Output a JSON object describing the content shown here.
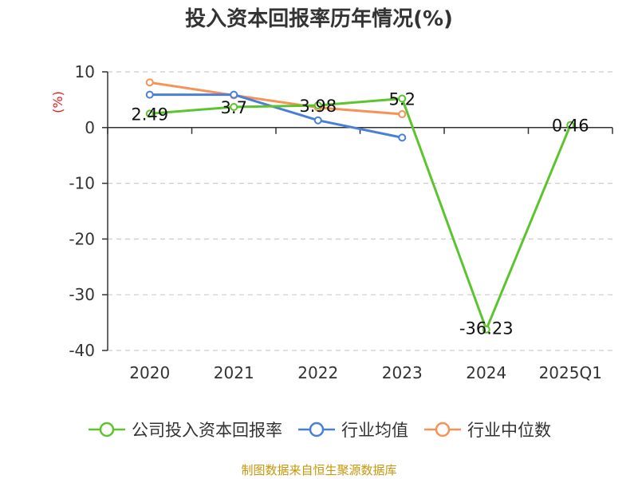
{
  "chart_data": {
    "type": "line",
    "title": "投入资本回报率历年情况(%)",
    "ylabel": "(%)",
    "categories": [
      "2020",
      "2021",
      "2022",
      "2023",
      "2024",
      "2025Q1"
    ],
    "ylim": [
      -40,
      10
    ],
    "yticks": [
      "10",
      "0",
      "-10",
      "-20",
      "-30",
      "-40"
    ],
    "grid": true,
    "legend_placement": "bottom",
    "series": [
      {
        "name": "公司投入资本回报率",
        "color": "#5cc42e",
        "values": [
          2.49,
          3.7,
          3.98,
          5.2,
          -36.23,
          0.46
        ],
        "labels": [
          "2.49",
          "3.7",
          "3.98",
          "5.2",
          "-36.23",
          "0.46"
        ]
      },
      {
        "name": "行业均值",
        "color": "#4a7fd8",
        "values": [
          5.9,
          5.9,
          1.3,
          -1.8,
          null,
          null
        ]
      },
      {
        "name": "行业中位数",
        "color": "#f79256",
        "values": [
          8.1,
          5.8,
          3.6,
          2.4,
          null,
          null
        ]
      }
    ]
  },
  "source_text": "制图数据来自恒生聚源数据库"
}
